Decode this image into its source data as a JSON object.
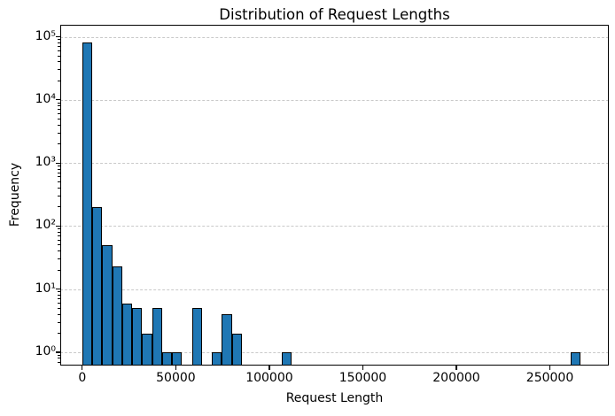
{
  "figure": {
    "background_color": "#ffffff",
    "text_color": "#000000"
  },
  "chart_data": {
    "type": "bar",
    "subtype": "histogram",
    "title": "Distribution of Request Lengths",
    "xlabel": "Request Length",
    "ylabel": "Frequency",
    "x_scale": "linear",
    "y_scale": "log",
    "grid": "horizontal dashed lines at each decade",
    "legend": "none",
    "bar_color": "#1f77b4",
    "bar_edge_color": "#000000",
    "grid_color": "#c9c9c9",
    "xlim": [
      -11800,
      281500
    ],
    "ylim_log10": [
      -0.21,
      5.19
    ],
    "histogram": {
      "bin_start": 0,
      "bin_width": 5330,
      "n_bins": 50,
      "frequencies": [
        80000,
        200,
        50,
        23,
        6,
        5,
        2,
        5,
        1,
        1,
        0,
        5,
        0,
        1,
        4,
        2,
        0,
        0,
        0,
        0,
        1,
        0,
        0,
        0,
        0,
        0,
        0,
        0,
        0,
        0,
        0,
        0,
        0,
        0,
        0,
        0,
        0,
        0,
        0,
        0,
        0,
        0,
        0,
        0,
        0,
        0,
        0,
        0,
        0,
        1
      ]
    },
    "xticks": [
      {
        "value": 0,
        "label": "0"
      },
      {
        "value": 50000,
        "label": "50000"
      },
      {
        "value": 100000,
        "label": "100000"
      },
      {
        "value": 150000,
        "label": "150000"
      },
      {
        "value": 200000,
        "label": "200000"
      },
      {
        "value": 250000,
        "label": "250000"
      }
    ],
    "yticks": [
      {
        "value": 1,
        "label": "10⁰"
      },
      {
        "value": 10,
        "label": "10¹"
      },
      {
        "value": 100,
        "label": "10²"
      },
      {
        "value": 1000,
        "label": "10³"
      },
      {
        "value": 10000,
        "label": "10⁴"
      },
      {
        "value": 100000,
        "label": "10⁵"
      }
    ]
  }
}
